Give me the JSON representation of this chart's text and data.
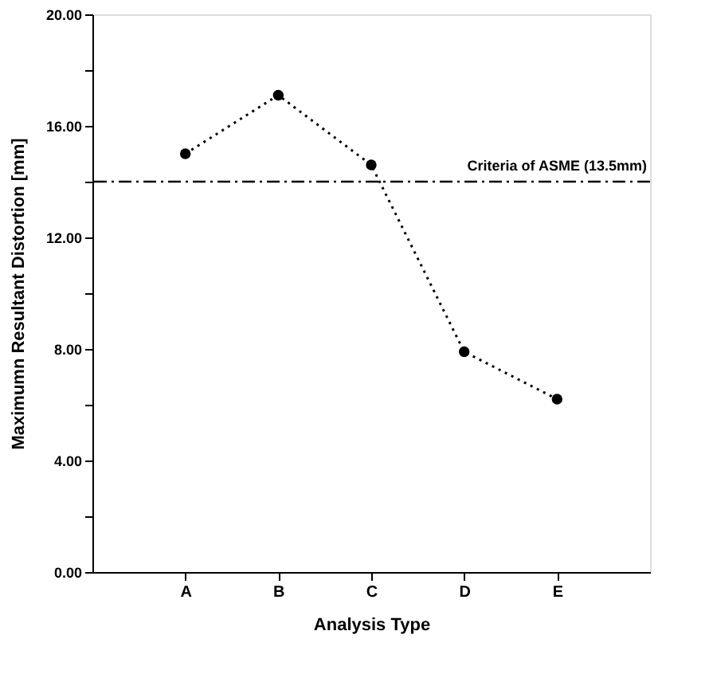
{
  "chart_data": {
    "type": "line",
    "xlabel": "Analysis Type",
    "ylabel": "Maximumn Resultant Distortion [mm]",
    "categories": [
      "A",
      "B",
      "C",
      "D",
      "E"
    ],
    "series": [
      {
        "color": "#000000",
        "values": [
          15.0,
          17.1,
          14.6,
          7.9,
          6.2
        ]
      }
    ],
    "marker": "circle",
    "line_style": "dotted",
    "grid": false,
    "ylim": [
      0,
      20
    ],
    "yticks": [
      {
        "value": 0,
        "label": "0.00"
      },
      {
        "value": 2,
        "label": null
      },
      {
        "value": 4,
        "label": "4.00"
      },
      {
        "value": 6,
        "label": null
      },
      {
        "value": 8,
        "label": "8.00"
      },
      {
        "value": 10,
        "label": null
      },
      {
        "value": 12,
        "label": "12.00"
      },
      {
        "value": 14,
        "label": null
      },
      {
        "value": 16,
        "label": "16.00"
      },
      {
        "value": 18,
        "label": null
      },
      {
        "value": 20,
        "label": "20.00"
      }
    ],
    "ref_lines": [
      {
        "axis": "y",
        "value": 14,
        "label": "Criteria of ASME (13.5mm)",
        "color": "#000000",
        "line_style": "dashdot"
      }
    ]
  }
}
